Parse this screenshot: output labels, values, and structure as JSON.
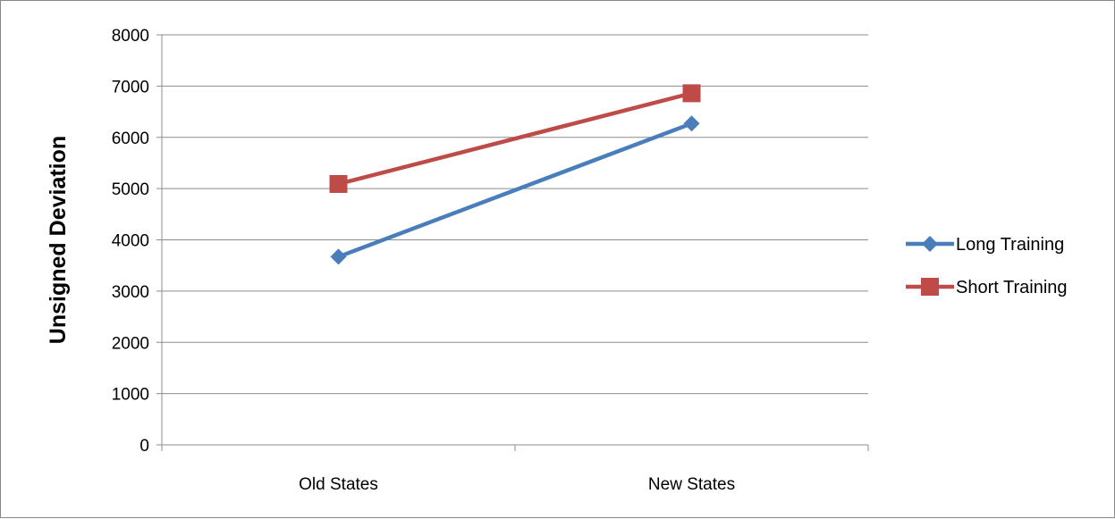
{
  "chart_data": {
    "type": "line",
    "categories": [
      "Old States",
      "New States"
    ],
    "series": [
      {
        "name": "Long Training",
        "values": [
          3670,
          6270
        ],
        "color": "#4a7ebb",
        "marker": "diamond"
      },
      {
        "name": "Short Training",
        "values": [
          5090,
          6860
        ],
        "color": "#be4b48",
        "marker": "square"
      }
    ],
    "title": "",
    "xlabel": "",
    "ylabel": "Unsigned Deviation",
    "ylim": [
      0,
      8000
    ],
    "yticks": [
      0,
      1000,
      2000,
      3000,
      4000,
      5000,
      6000,
      7000,
      8000
    ],
    "grid": true,
    "legend_position": "right"
  }
}
